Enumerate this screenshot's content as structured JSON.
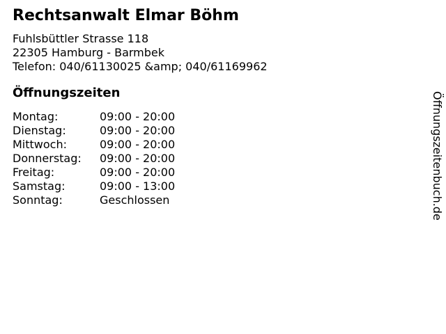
{
  "business": {
    "title": "Rechtsanwalt Elmar Böhm",
    "address_line1": "Fuhlsbüttler Strasse 118",
    "address_line2": "22305 Hamburg - Barmbek",
    "phone_line": "Telefon: 040/61130025 &amp; 040/61169962"
  },
  "hours": {
    "heading": "Öffnungszeiten",
    "rows": [
      {
        "day": "Montag:",
        "time": "09:00 - 20:00"
      },
      {
        "day": "Dienstag:",
        "time": "09:00 - 20:00"
      },
      {
        "day": "Mittwoch:",
        "time": "09:00 - 20:00"
      },
      {
        "day": "Donnerstag:",
        "time": "09:00 - 20:00"
      },
      {
        "day": "Freitag:",
        "time": "09:00 - 20:00"
      },
      {
        "day": "Samstag:",
        "time": "09:00 - 13:00"
      },
      {
        "day": "Sonntag:",
        "time": "Geschlossen"
      }
    ]
  },
  "watermark": {
    "label": "Öffnungszeitenbuch.de"
  },
  "colors": {
    "text": "#000000",
    "background": "#ffffff"
  }
}
